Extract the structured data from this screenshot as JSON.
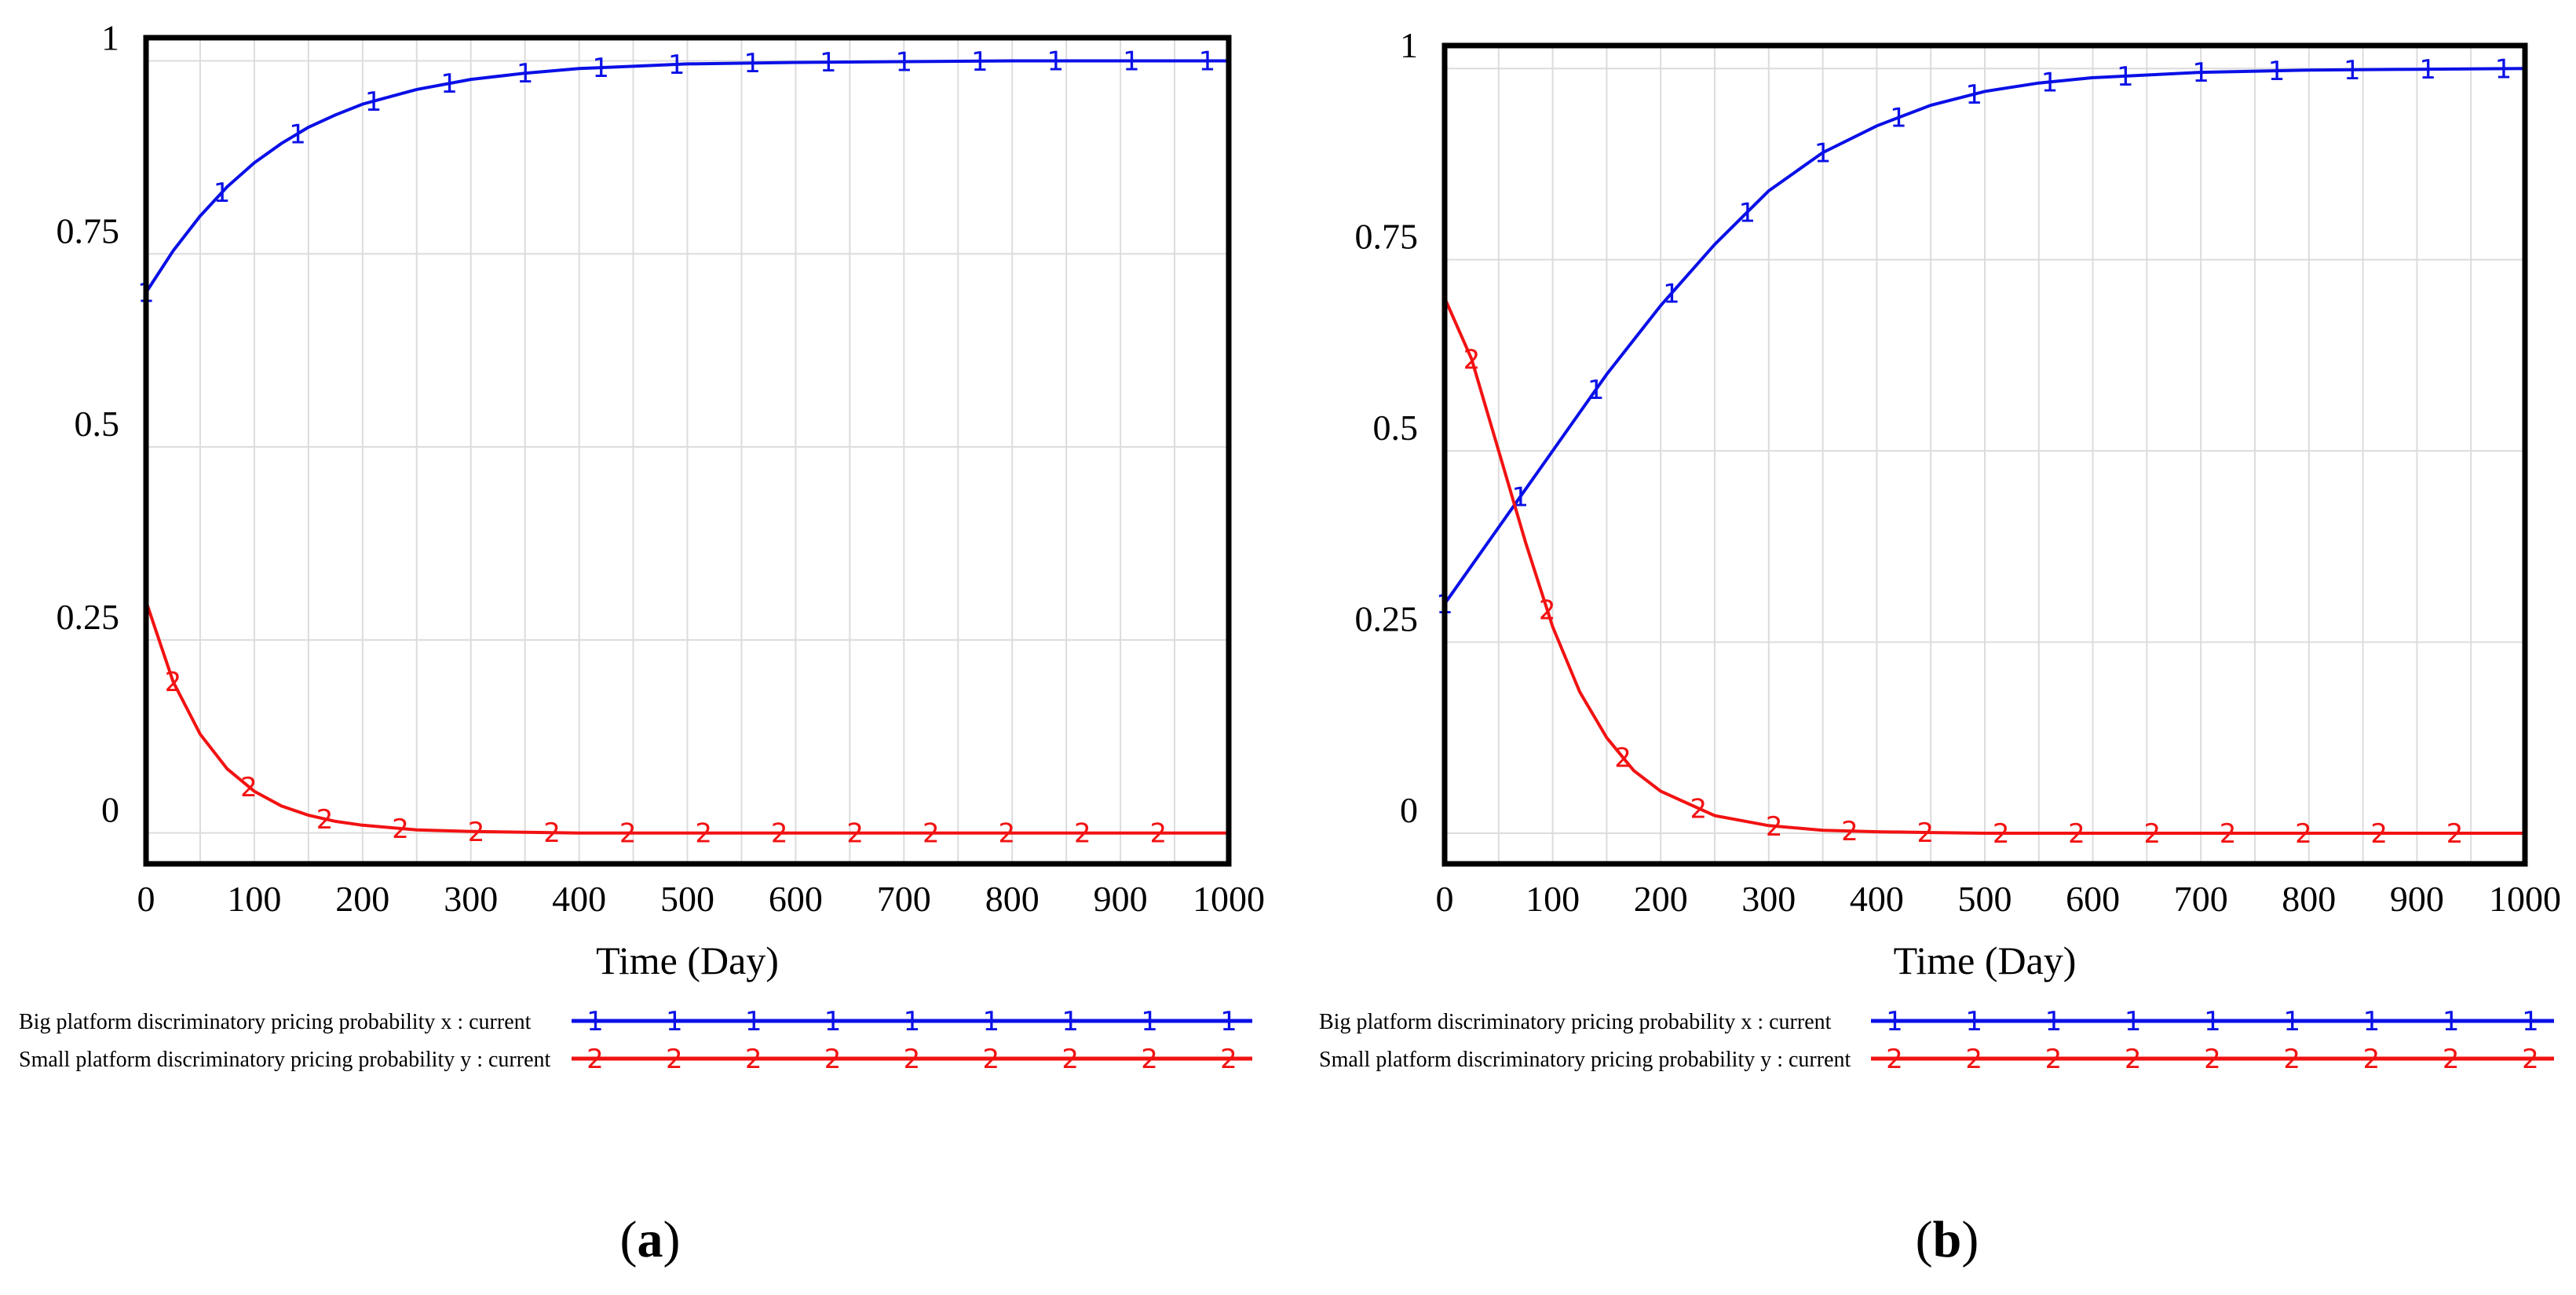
{
  "colors": {
    "series1": "#0a10e6",
    "series2": "#f21212",
    "grid": "#dcdcdc",
    "frame": "#000000"
  },
  "chart_data": [
    {
      "type": "line",
      "panel": "a",
      "caption_letter": "a",
      "xlabel": "Time (Day)",
      "ylabel": "",
      "xlim": [
        0,
        1000
      ],
      "ylim": [
        -0.04,
        1.03
      ],
      "x_ticks": [
        0,
        100,
        200,
        300,
        400,
        500,
        600,
        700,
        800,
        900,
        1000
      ],
      "x_tick_labels": [
        "0",
        "100",
        "200",
        "300",
        "400",
        "500",
        "600",
        "700",
        "800",
        "900",
        "1000"
      ],
      "y_ticks": [
        0,
        0.25,
        0.5,
        0.75,
        1
      ],
      "y_tick_labels": [
        "0",
        "0.25",
        "0.5",
        "0.75",
        "1"
      ],
      "x": [
        0,
        25,
        50,
        75,
        100,
        125,
        150,
        175,
        200,
        250,
        300,
        350,
        400,
        450,
        500,
        600,
        700,
        800,
        900,
        1000
      ],
      "series": [
        {
          "name": "Big platform discriminatory pricing probability x : current",
          "marker": "1",
          "values": [
            0.7,
            0.754,
            0.799,
            0.837,
            0.868,
            0.893,
            0.914,
            0.93,
            0.944,
            0.963,
            0.976,
            0.984,
            0.99,
            0.993,
            0.996,
            0.998,
            0.999,
            1.0,
            1.0,
            1.0
          ]
        },
        {
          "name": "Small platform discriminatory pricing probability y : current",
          "marker": "2",
          "values": [
            0.3,
            0.196,
            0.128,
            0.083,
            0.054,
            0.035,
            0.023,
            0.015,
            0.01,
            0.004,
            0.002,
            0.001,
            0.0,
            0.0,
            0.0,
            0.0,
            0.0,
            0.0,
            0.0,
            0.0
          ]
        }
      ]
    },
    {
      "type": "line",
      "panel": "b",
      "caption_letter": "b",
      "xlabel": "Time (Day)",
      "ylabel": "",
      "xlim": [
        0,
        1000
      ],
      "ylim": [
        -0.04,
        1.03
      ],
      "x_ticks": [
        0,
        100,
        200,
        300,
        400,
        500,
        600,
        700,
        800,
        900,
        1000
      ],
      "x_tick_labels": [
        "0",
        "100",
        "200",
        "300",
        "400",
        "500",
        "600",
        "700",
        "800",
        "900",
        "1000"
      ],
      "y_ticks": [
        0,
        0.25,
        0.5,
        0.75,
        1
      ],
      "y_tick_labels": [
        "0",
        "0.25",
        "0.5",
        "0.75",
        "1"
      ],
      "x": [
        0,
        25,
        50,
        75,
        100,
        125,
        150,
        175,
        200,
        250,
        300,
        350,
        400,
        450,
        500,
        550,
        600,
        700,
        800,
        900,
        1000
      ],
      "series": [
        {
          "name": "Big platform discriminatory pricing probability x : current",
          "marker": "1",
          "values": [
            0.3,
            0.35,
            0.4,
            0.45,
            0.5,
            0.55,
            0.6,
            0.645,
            0.69,
            0.77,
            0.84,
            0.89,
            0.925,
            0.952,
            0.97,
            0.981,
            0.988,
            0.995,
            0.998,
            0.999,
            1.0
          ]
        },
        {
          "name": "Small platform discriminatory pricing probability y : current",
          "marker": "2",
          "values": [
            0.7,
            0.62,
            0.5,
            0.38,
            0.27,
            0.185,
            0.125,
            0.082,
            0.055,
            0.023,
            0.01,
            0.004,
            0.002,
            0.001,
            0.0,
            0.0,
            0.0,
            0.0,
            0.0,
            0.0,
            0.0
          ]
        }
      ]
    }
  ]
}
